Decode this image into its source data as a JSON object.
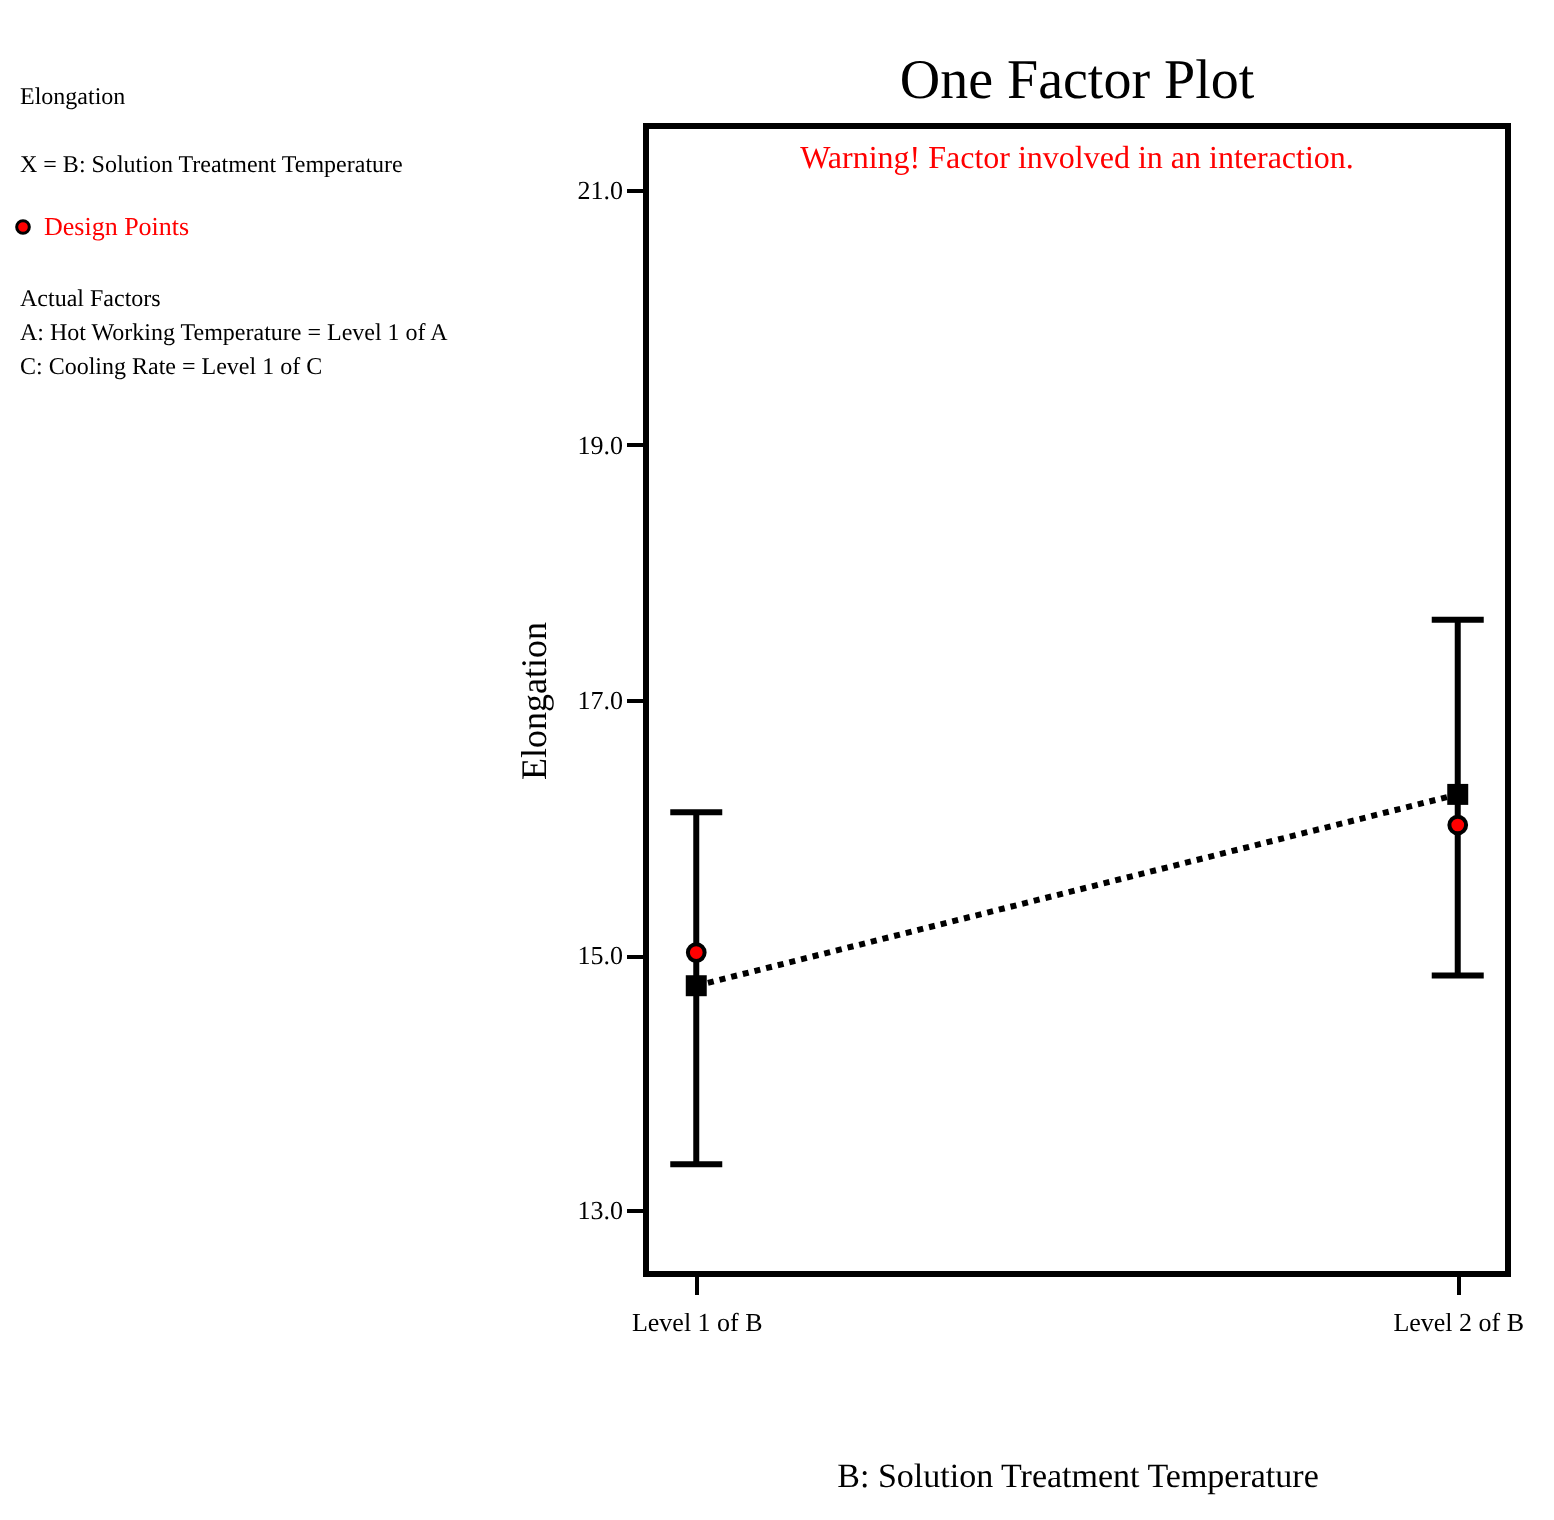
{
  "chart_data": {
    "type": "line",
    "title": "One Factor Plot",
    "subtitle": "Warning! Factor involved in an interaction.",
    "xlabel": "B: Solution Treatment Temperature",
    "ylabel": "Elongation",
    "categories": [
      "Level 1 of B",
      "Level 2 of B"
    ],
    "series": [
      {
        "color": "#000000",
        "marker": "square",
        "line_style": "dotted",
        "values": [
          14.76,
          16.26
        ],
        "errors": [
          [
            13.36,
            16.12
          ],
          [
            14.84,
            17.63
          ]
        ]
      },
      {
        "type": "scatter",
        "name": "Design Points",
        "color": "#ff0000",
        "marker": "circle",
        "values": [
          15.02,
          16.02
        ]
      }
    ],
    "ylim": [
      12.5,
      21.5
    ],
    "yticks": [
      {
        "value": 13,
        "label": "13.0"
      },
      {
        "value": 15,
        "label": "15.0"
      },
      {
        "value": 17,
        "label": "17.0"
      },
      {
        "value": 19,
        "label": "19.0"
      },
      {
        "value": 21,
        "label": "21.0"
      }
    ],
    "grid": false,
    "legend": "left",
    "annotations": [
      "Elongation",
      "X = B: Solution Treatment Temperature",
      "Actual Factors",
      "A: Hot Working Temperature = Level 1 of A",
      "C: Cooling Rate = Level 1 of C"
    ]
  }
}
